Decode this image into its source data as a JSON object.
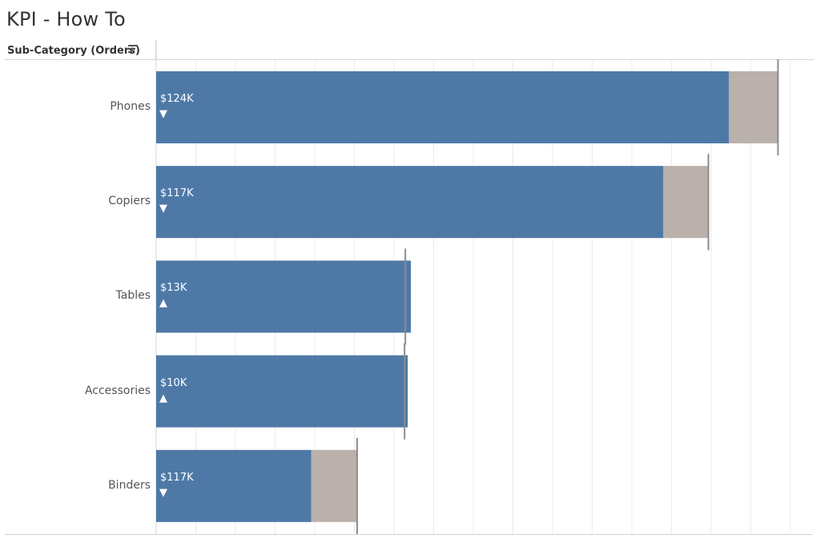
{
  "page": {
    "title": "KPI - How To"
  },
  "header": {
    "column_label": "Sub-Category (Orders)",
    "sort_icon": "sort-descending-icon"
  },
  "chart_data": {
    "type": "bar",
    "orientation": "horizontal",
    "categories": [
      "Phones",
      "Copiers",
      "Tables",
      "Accessories",
      "Binders"
    ],
    "series": [
      {
        "values": [
          724,
          641,
          322,
          318,
          196
        ]
      },
      {
        "values": [
          786,
          698,
          315,
          314,
          254
        ]
      }
    ],
    "data_labels": [
      "$124K",
      "$117K",
      "$13K",
      "$10K",
      "$117K"
    ],
    "indicators": [
      "down",
      "down",
      "up",
      "up",
      "down"
    ],
    "xlim": [
      0,
      830
    ],
    "grid": true,
    "colors": {
      "primary_bar": "#4e79a7",
      "gap_bar": "#bab0ac",
      "reference_line": "#8c8c8c",
      "grid": "#ebebeb",
      "axis": "#d4d4d4"
    }
  }
}
